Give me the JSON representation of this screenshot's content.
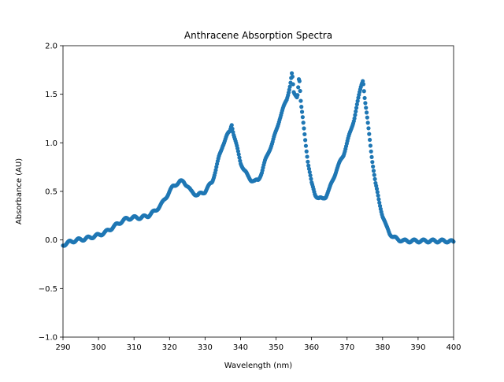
{
  "chart_data": {
    "type": "scatter",
    "title": "Anthracene Absorption Spectra",
    "xlabel": "Wavelength (nm)",
    "ylabel": "Absorbance (AU)",
    "xlim": [
      290,
      400
    ],
    "ylim": [
      -1.0,
      2.0
    ],
    "xticks": [
      290,
      300,
      310,
      320,
      330,
      340,
      350,
      360,
      370,
      380,
      390,
      400
    ],
    "xtick_labels": [
      "290",
      "300",
      "310",
      "320",
      "330",
      "340",
      "350",
      "360",
      "370",
      "380",
      "390",
      "400"
    ],
    "yticks": [
      -1.0,
      -0.5,
      0.0,
      0.5,
      1.0,
      1.5,
      2.0
    ],
    "ytick_labels": [
      "−1.0",
      "−0.5",
      "0.0",
      "0.5",
      "1.0",
      "1.5",
      "2.0"
    ],
    "grid": false,
    "color": "#1f77b4",
    "series": [
      {
        "x": [
          290,
          292,
          294,
          296,
          298,
          300,
          302,
          304,
          306,
          308,
          310,
          312,
          314,
          316,
          318,
          320,
          321,
          322,
          323,
          324,
          325,
          326,
          328,
          330,
          332,
          333,
          334,
          335,
          336,
          337,
          337.5,
          338,
          339,
          340,
          341,
          342,
          343,
          344,
          345,
          346,
          347,
          348,
          349,
          350,
          351,
          352,
          353,
          354,
          354.5,
          355,
          356,
          356.5,
          357,
          358,
          359,
          360,
          361,
          362,
          363,
          364,
          365,
          366,
          367,
          368,
          369,
          370,
          371,
          372,
          373,
          374,
          374.5,
          375,
          376,
          377,
          378,
          379,
          380,
          381,
          382,
          383,
          384,
          385,
          386,
          388,
          390,
          392,
          394,
          396,
          398,
          400
        ],
        "y": [
          -0.05,
          -0.02,
          0.0,
          0.01,
          0.03,
          0.05,
          0.08,
          0.13,
          0.18,
          0.22,
          0.23,
          0.23,
          0.25,
          0.3,
          0.38,
          0.5,
          0.55,
          0.58,
          0.6,
          0.6,
          0.56,
          0.5,
          0.46,
          0.5,
          0.6,
          0.72,
          0.86,
          0.98,
          1.06,
          1.12,
          1.2,
          1.1,
          0.95,
          0.8,
          0.72,
          0.66,
          0.62,
          0.6,
          0.62,
          0.7,
          0.82,
          0.92,
          1.0,
          1.12,
          1.25,
          1.35,
          1.45,
          1.6,
          1.72,
          1.5,
          1.48,
          1.7,
          1.4,
          1.1,
          0.8,
          0.58,
          0.47,
          0.43,
          0.42,
          0.45,
          0.52,
          0.62,
          0.72,
          0.8,
          0.88,
          1.0,
          1.12,
          1.25,
          1.42,
          1.6,
          1.66,
          1.45,
          1.15,
          0.85,
          0.58,
          0.4,
          0.25,
          0.14,
          0.07,
          0.03,
          0.01,
          0.0,
          -0.01,
          -0.01,
          -0.01,
          -0.01,
          -0.01,
          -0.01,
          -0.01,
          -0.02
        ]
      }
    ]
  }
}
